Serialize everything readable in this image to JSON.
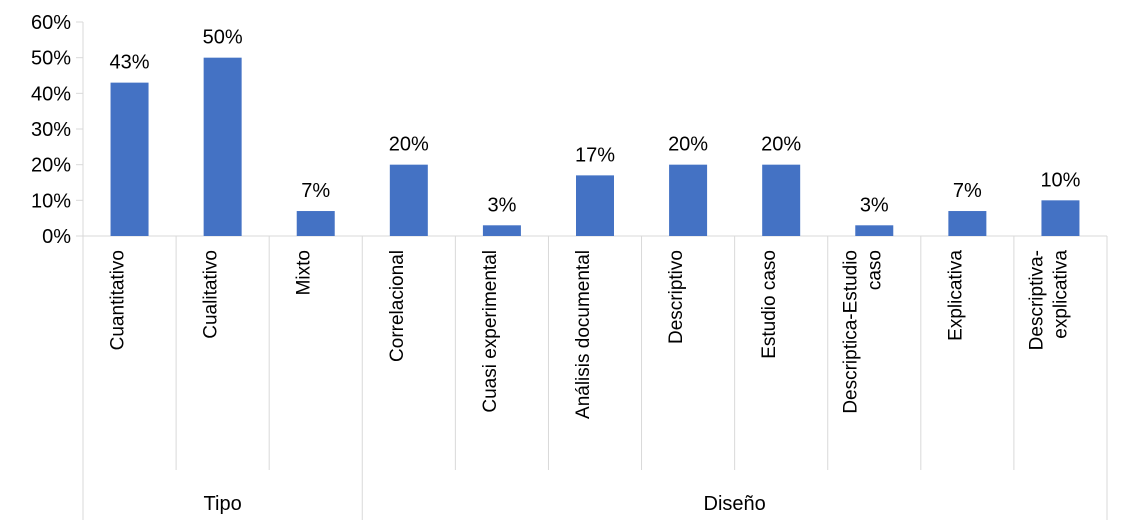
{
  "chart_data": {
    "type": "bar",
    "title": "",
    "xlabel": "",
    "ylabel": "",
    "ylim": [
      0,
      0.6
    ],
    "yticks": [
      "0%",
      "10%",
      "20%",
      "30%",
      "40%",
      "50%",
      "60%"
    ],
    "grid": false,
    "legend": "none",
    "bar_color": "#4472C4",
    "categories": [
      "Cuantitativo",
      "Cualitativo",
      "Mixto",
      "Correlacional",
      "Cuasi experimental",
      "Análisis documental",
      "Descriptivo",
      "Estudio caso",
      "Descriptica-Estudio caso",
      "Explicativa",
      "Descriptiva-explicativa"
    ],
    "category_lines": [
      [
        "Cuantitativo"
      ],
      [
        "Cualitativo"
      ],
      [
        "Mixto"
      ],
      [
        "Correlacional"
      ],
      [
        "Cuasi experimental"
      ],
      [
        "Análisis documental"
      ],
      [
        "Descriptivo"
      ],
      [
        "Estudio caso"
      ],
      [
        "Descriptica-Estudio",
        "caso"
      ],
      [
        "Explicativa"
      ],
      [
        "Descriptiva-",
        "explicativa"
      ]
    ],
    "values": [
      0.43,
      0.5,
      0.07,
      0.2,
      0.03,
      0.17,
      0.2,
      0.2,
      0.03,
      0.07,
      0.1
    ],
    "data_labels": [
      "43%",
      "50%",
      "7%",
      "20%",
      "3%",
      "17%",
      "20%",
      "20%",
      "3%",
      "7%",
      "10%"
    ],
    "groups": [
      {
        "label": "Tipo",
        "count": 3
      },
      {
        "label": "Diseño",
        "count": 8
      }
    ]
  }
}
